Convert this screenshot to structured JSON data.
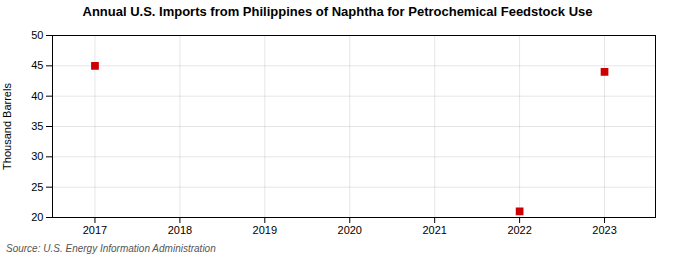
{
  "chart_data": {
    "type": "scatter",
    "title": "Annual U.S. Imports from Philippines of Naphtha for Petrochemical Feedstock Use",
    "ylabel": "Thousand Barrels",
    "source": "Source: U.S. Energy Information Administration",
    "x": [
      2017,
      2022,
      2023
    ],
    "values": [
      45,
      21,
      44
    ],
    "color": "#cc0000",
    "marker": "square",
    "xlim": [
      2016.5,
      2023.6
    ],
    "ylim": [
      20,
      50
    ],
    "xticks": [
      2017,
      2018,
      2019,
      2020,
      2021,
      2022,
      2023
    ],
    "yticks": [
      20,
      25,
      30,
      35,
      40,
      45,
      50
    ],
    "grid": true
  }
}
